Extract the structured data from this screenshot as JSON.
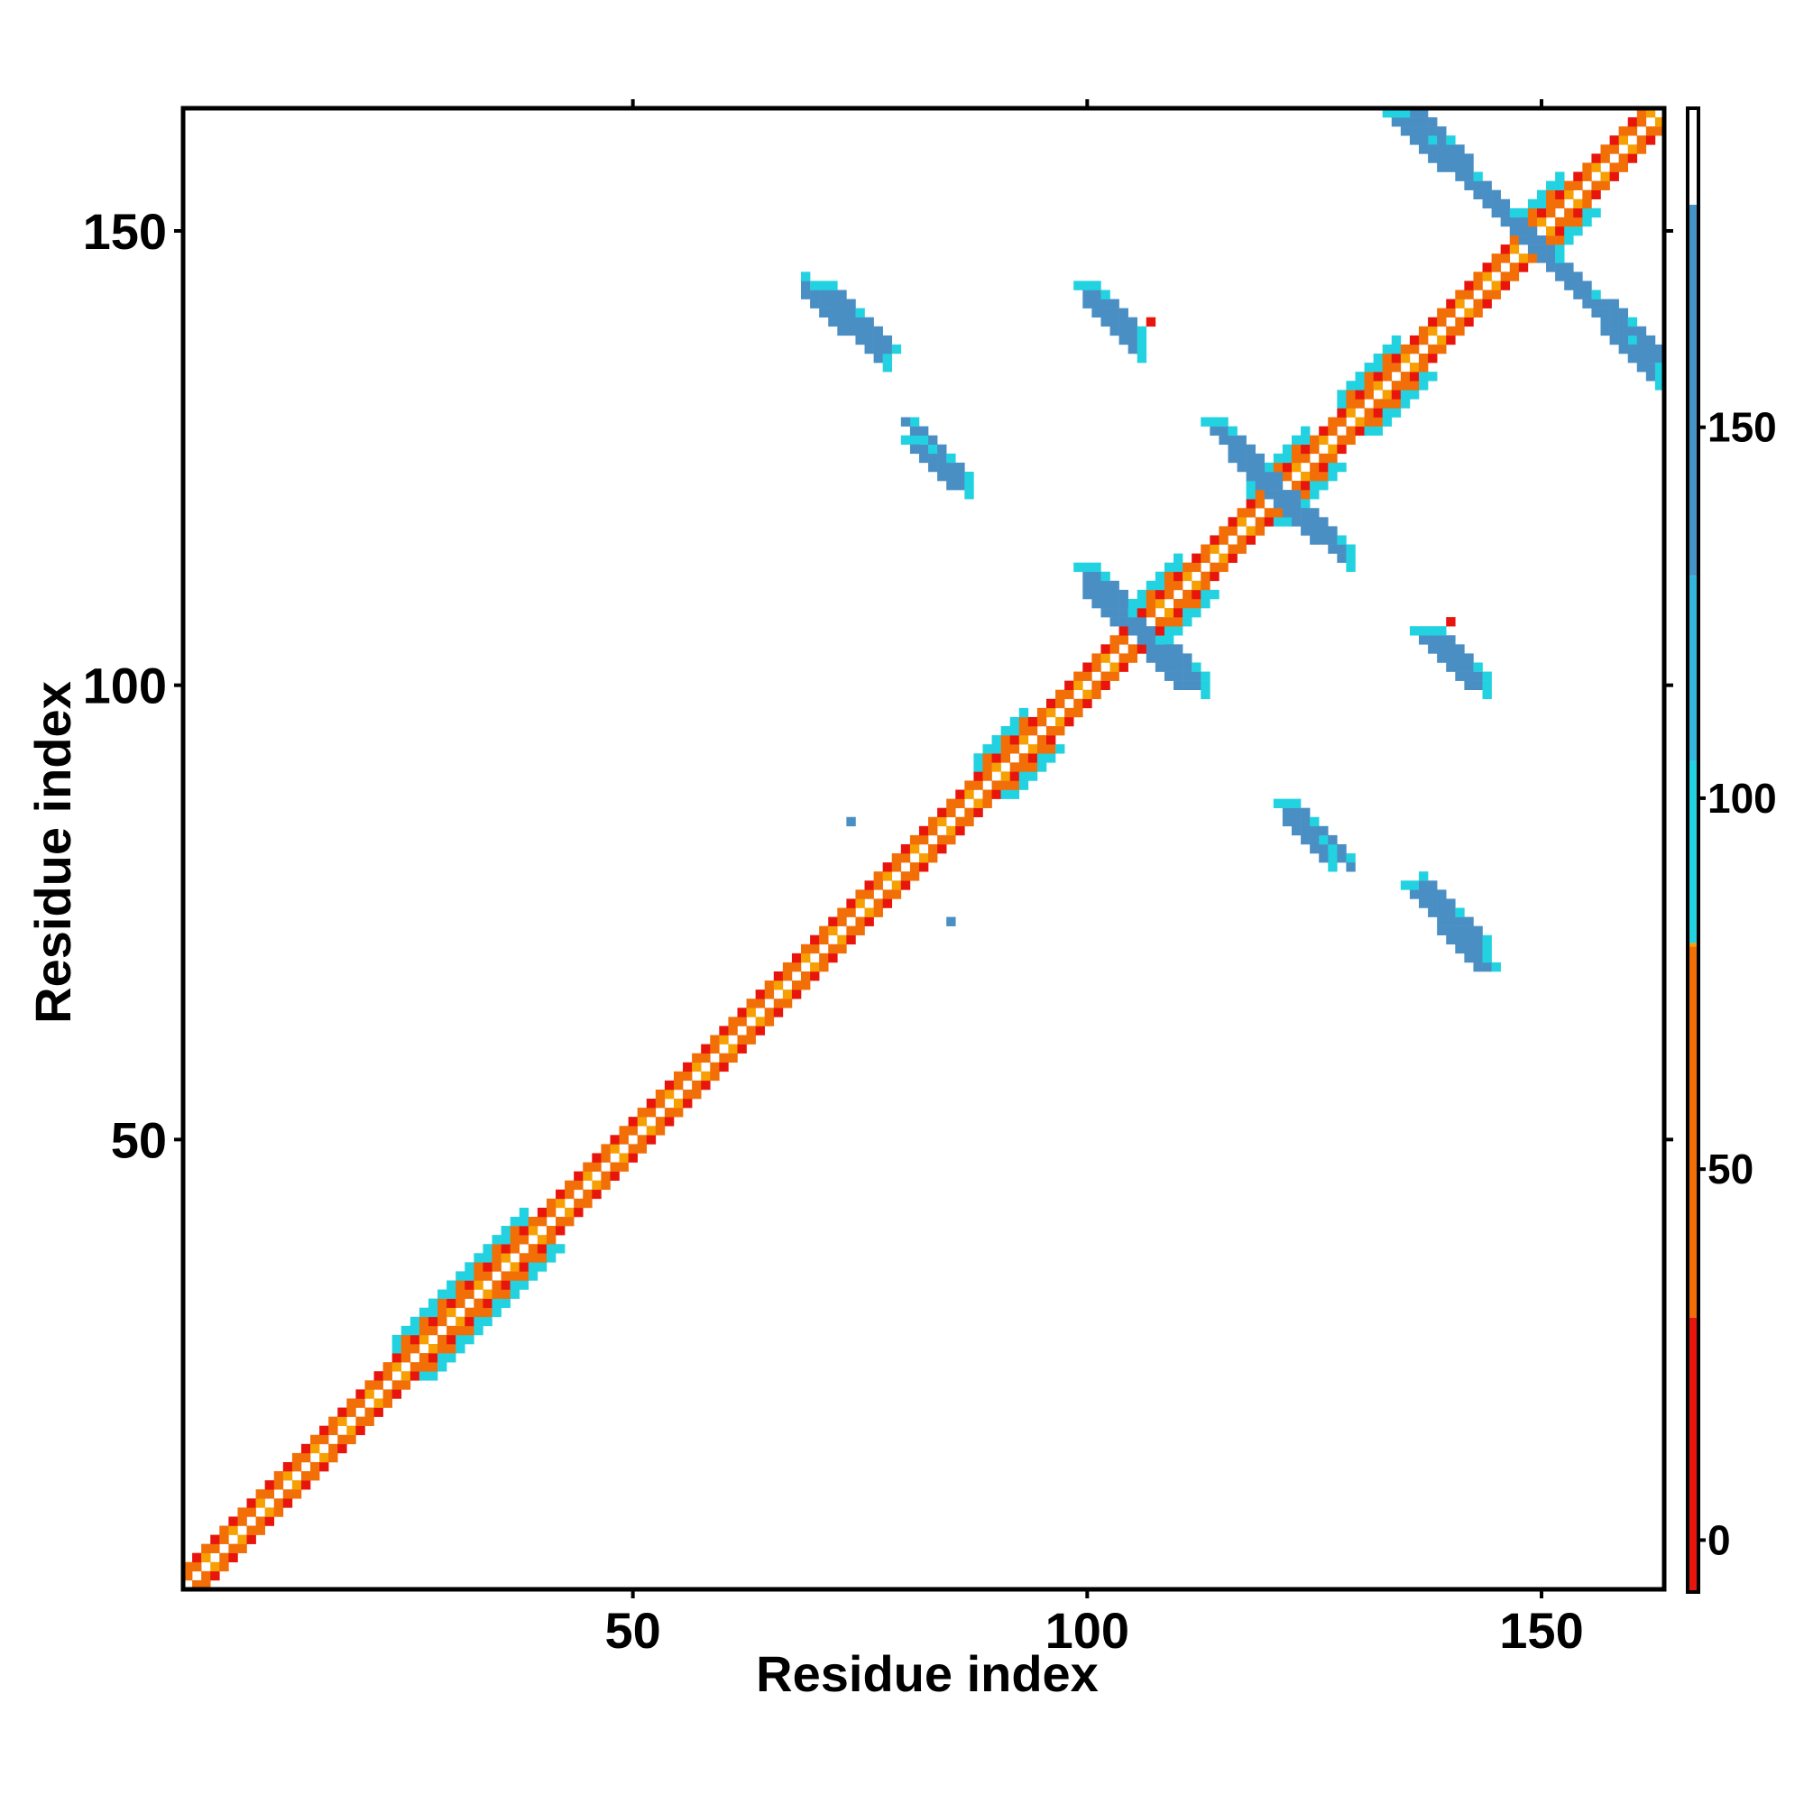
{
  "chart_data": {
    "type": "heatmap",
    "title": "",
    "xlabel": "Residue index",
    "ylabel": "Residue index",
    "xlim": [
      1,
      163
    ],
    "ylim": [
      1,
      163
    ],
    "xticks": [
      50,
      100,
      150
    ],
    "yticks": [
      50,
      100,
      150
    ],
    "colorbar": {
      "ticks": [
        0,
        50,
        100,
        150
      ],
      "range": [
        -7,
        193
      ],
      "bands": [
        {
          "from": -7,
          "to": 30,
          "color": "#e8150d"
        },
        {
          "from": 30,
          "to": 80,
          "color": "#f26e06"
        },
        {
          "from": 80,
          "to": 80.5,
          "color": "#f7a003"
        },
        {
          "from": 80.5,
          "to": 105,
          "color": "#23d2e0"
        },
        {
          "from": 105,
          "to": 130,
          "color": "#33b5dd"
        },
        {
          "from": 130,
          "to": 180,
          "color": "#4594c8"
        },
        {
          "from": 180,
          "to": 193,
          "color": "#ffffff"
        }
      ]
    },
    "value_colors": {
      "red": "#e8150d",
      "orange_red": "#f26e06",
      "orange": "#f7a003",
      "cyan": "#23d2e0",
      "steel_blue": "#4a8fc4"
    },
    "features": [
      {
        "kind": "diagonal",
        "from": 1,
        "to": 163,
        "values": "alternating orange/red with cyan near helix ends"
      },
      {
        "kind": "antidiagonal",
        "x": [
          136,
          163
        ],
        "y_start": 163,
        "y_end": 134,
        "value": 150,
        "near_diag_value": 100
      },
      {
        "kind": "antidiagonal",
        "x": [
          69,
          78
        ],
        "y_start": 144,
        "y_end": 136,
        "value": 150
      },
      {
        "kind": "antidiagonal",
        "x": [
          100,
          106
        ],
        "y_start": 143,
        "y_end": 137,
        "value": 150
      },
      {
        "kind": "antidiagonal",
        "x": [
          81,
          87
        ],
        "y_start": 128,
        "y_end": 122,
        "value": 150
      },
      {
        "kind": "antidiagonal",
        "x": [
          116,
          129
        ],
        "y_start": 126,
        "y_end": 114,
        "value": 150
      },
      {
        "kind": "antidiagonal",
        "x": [
          100,
          113
        ],
        "y_start": 111,
        "y_end": 100,
        "value": 150
      },
      {
        "kind": "antidiagonal",
        "x": [
          139,
          144
        ],
        "y_start": 105,
        "y_end": 100,
        "value": 150
      },
      {
        "kind": "antidiagonal",
        "x": [
          122,
          127
        ],
        "y_start": 86,
        "y_end": 81,
        "value": 150
      },
      {
        "kind": "antidiagonal",
        "x": [
          137,
          144
        ],
        "y_start": 78,
        "y_end": 71,
        "value": 150
      },
      {
        "kind": "cell",
        "x": 107,
        "y": 140,
        "value": 0
      },
      {
        "kind": "cell",
        "x": 140,
        "y": 107,
        "value": 0
      },
      {
        "kind": "cell",
        "x": 74,
        "y": 85,
        "value": 150
      },
      {
        "kind": "cell",
        "x": 85,
        "y": 74,
        "value": 150
      },
      {
        "kind": "cell",
        "x": 80,
        "y": 129,
        "value": 150
      },
      {
        "kind": "cell",
        "x": 129,
        "y": 80,
        "value": 150
      }
    ]
  }
}
